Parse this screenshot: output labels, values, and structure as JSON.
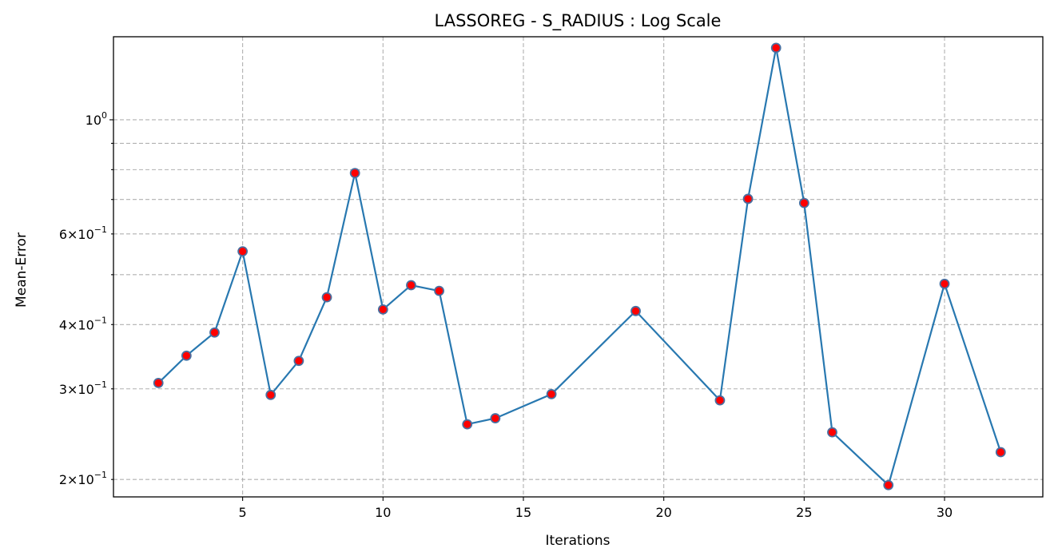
{
  "chart_data": {
    "type": "line",
    "title": "LASSOREG - S_RADIUS : Log Scale",
    "xlabel": "Iterations",
    "ylabel": "Mean-Error",
    "yscale": "log",
    "xlim": [
      0.4,
      33.5
    ],
    "ylim": [
      0.185,
      1.45
    ],
    "grid": true,
    "x_ticks": [
      5,
      10,
      15,
      20,
      25,
      30
    ],
    "x_tick_labels": [
      "5",
      "10",
      "15",
      "20",
      "25",
      "30"
    ],
    "y_major_ticks": [
      {
        "value": 1.0,
        "base": "10",
        "exp": "0"
      }
    ],
    "y_minor_ticks": [
      {
        "value": 0.2,
        "mant": "2",
        "base": "10",
        "exp": "−1"
      },
      {
        "value": 0.3,
        "mant": "3",
        "base": "10",
        "exp": "−1"
      },
      {
        "value": 0.4,
        "mant": "4",
        "base": "10",
        "exp": "−1"
      },
      {
        "value": 0.5,
        "mant": "",
        "base": "",
        "exp": ""
      },
      {
        "value": 0.6,
        "mant": "6",
        "base": "10",
        "exp": "−1"
      },
      {
        "value": 0.7,
        "mant": "",
        "base": "",
        "exp": ""
      },
      {
        "value": 0.8,
        "mant": "",
        "base": "",
        "exp": ""
      },
      {
        "value": 0.9,
        "mant": "",
        "base": "",
        "exp": ""
      }
    ],
    "series": [
      {
        "line_color": "#2878b0",
        "marker_fill": "#ff0000",
        "marker_edge": "#4a6fa0",
        "x": [
          2,
          3,
          4,
          5,
          6,
          7,
          8,
          9,
          10,
          11,
          12,
          13,
          14,
          16,
          19,
          22,
          23,
          24,
          25,
          26,
          28,
          30,
          32
        ],
        "y": [
          0.308,
          0.348,
          0.386,
          0.555,
          0.292,
          0.34,
          0.452,
          0.788,
          0.428,
          0.477,
          0.465,
          0.256,
          0.263,
          0.293,
          0.425,
          0.285,
          0.702,
          1.38,
          0.689,
          0.247,
          0.195,
          0.48,
          0.226
        ]
      }
    ]
  }
}
